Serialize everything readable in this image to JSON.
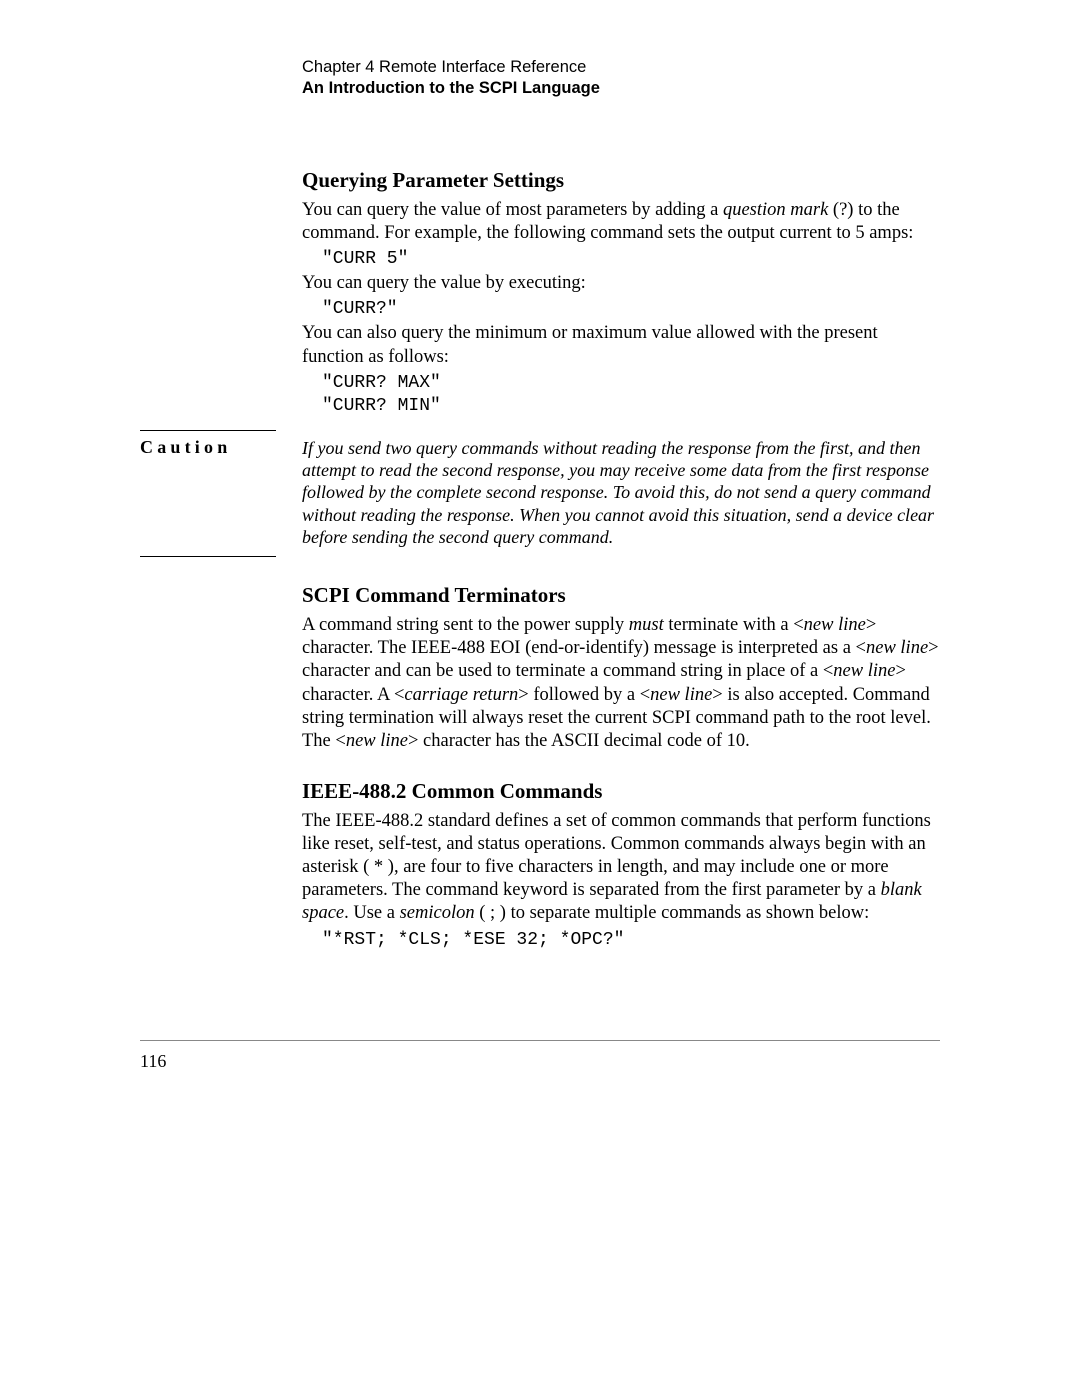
{
  "header": {
    "chapter": "Chapter 4 Remote Interface Reference",
    "subtitle": "An Introduction to the SCPI Language"
  },
  "section1": {
    "title": "Querying Parameter Settings",
    "p1a": "You can query the value of most parameters by adding a ",
    "p1_em": "question mark ",
    "p1b": " (?) to the command. For example, the following command  sets the output current to 5 amps:",
    "code1": "\"CURR 5\"",
    "p2": "You can query the value by executing:",
    "code2": "\"CURR?\"",
    "p3": "You can also query the minimum or maximum value allowed with the  present function as follows:",
    "code3": "\"CURR? MAX\"",
    "code4": "\"CURR? MIN\""
  },
  "caution": {
    "label": "Caution",
    "text": "If you send two query commands without reading the response from the first, and then attempt to read the second response, you may receive some data from the first response followed by the complete second response. To avoid this, do not send a query command without reading the response. When you cannot avoid this situation, send a device clear before sending the second query command."
  },
  "section2": {
    "title": "SCPI Command Terminators",
    "p1a": "A command string sent to the power supply ",
    "p1_em1": "must",
    "p1b": " terminate with a <",
    "p1_em2": "new line",
    "p1c": "> character. The IEEE-488 EOI (end-or-identify) message is interpreted as a <",
    "p1_em3": "new line",
    "p1d": "> character and can be used to terminate a command string in place of a <",
    "p1_em4": "new line",
    "p1e": "> character. A <",
    "p1_em5": "carriage return",
    "p1f": "> followed by a <",
    "p1_em6": "new line",
    "p1g": "> is also accepted. Command string termination will always reset the current SCPI command path to the root level. The <",
    "p1_em7": "new line",
    "p1h": "> character has the ASCII decimal code of 10."
  },
  "section3": {
    "title": "IEEE-488.2 Common Commands",
    "p1a": "The IEEE-488.2 standard defines a set of common commands that perform functions like reset, self-test, and status operations. Common commands always begin with an asterisk ( * ), are four to five characters in length, and may include one or more parameters. The command keyword is separated from the first parameter by a ",
    "p1_em1": "blank space",
    "p1b": ". Use a ",
    "p1_em2": "semicolon",
    "p1c": " ( ; ) to separate multiple commands as shown below:",
    "code1": "\"*RST; *CLS; *ESE 32; *OPC?\""
  },
  "pageNumber": "116",
  "style": {
    "pageWidth": 1080,
    "pageHeight": 1397,
    "background": "#ffffff",
    "textColor": "#000000",
    "ruleColor": "#888888"
  }
}
